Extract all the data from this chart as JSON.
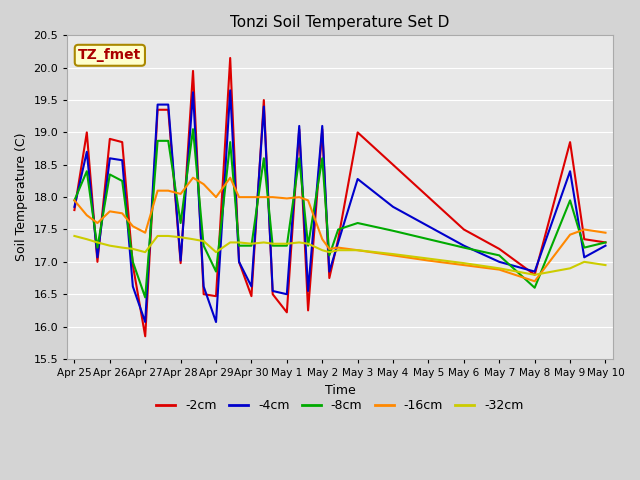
{
  "title": "Tonzi Soil Temperature Set D",
  "xlabel": "Time",
  "ylabel": "Soil Temperature (C)",
  "ylim": [
    15.5,
    20.5
  ],
  "xlim": [
    -0.2,
    15.2
  ],
  "fig_facecolor": "#d4d4d4",
  "ax_facecolor": "#e8e8e8",
  "annotation_text": "TZ_fmet",
  "annotation_color": "#aa0000",
  "annotation_bg": "#ffffcc",
  "annotation_border": "#aa8800",
  "colors": {
    "-2cm": "#dd0000",
    "-4cm": "#0000cc",
    "-8cm": "#00aa00",
    "-16cm": "#ff8800",
    "-32cm": "#cccc00"
  },
  "lw": 1.5,
  "xtick_labels": [
    "Apr 25",
    "Apr 26",
    "Apr 27",
    "Apr 28",
    "Apr 29",
    "Apr 30",
    "May 1",
    "May 2",
    "May 3",
    "May 4",
    "May 5",
    "May 6",
    "May 7",
    "May 8",
    "May 9",
    "May 10"
  ],
  "yticks": [
    15.5,
    16.0,
    16.5,
    17.0,
    17.5,
    18.0,
    18.5,
    19.0,
    19.5,
    20.0,
    20.5
  ],
  "pts_2cm": [
    [
      0,
      17.8
    ],
    [
      0.35,
      19.0
    ],
    [
      0.65,
      17.0
    ],
    [
      1.0,
      18.9
    ],
    [
      1.35,
      18.85
    ],
    [
      1.65,
      16.95
    ],
    [
      2.0,
      15.85
    ],
    [
      2.35,
      19.35
    ],
    [
      2.65,
      19.35
    ],
    [
      3.0,
      16.98
    ],
    [
      3.35,
      19.95
    ],
    [
      3.65,
      16.5
    ],
    [
      4.0,
      16.47
    ],
    [
      4.4,
      20.15
    ],
    [
      4.65,
      17.0
    ],
    [
      5.0,
      16.47
    ],
    [
      5.35,
      19.5
    ],
    [
      5.6,
      16.5
    ],
    [
      6.0,
      16.22
    ],
    [
      6.35,
      19.05
    ],
    [
      6.6,
      16.25
    ],
    [
      7.0,
      19.05
    ],
    [
      7.2,
      16.75
    ],
    [
      7.45,
      17.35
    ],
    [
      8.0,
      19.0
    ],
    [
      9.0,
      18.5
    ],
    [
      10.0,
      18.0
    ],
    [
      11.0,
      17.5
    ],
    [
      12.0,
      17.2
    ],
    [
      13.0,
      16.8
    ],
    [
      14.0,
      18.85
    ],
    [
      14.4,
      17.35
    ],
    [
      15.0,
      17.3
    ]
  ],
  "pts_4cm": [
    [
      0,
      17.85
    ],
    [
      0.35,
      18.7
    ],
    [
      0.65,
      17.07
    ],
    [
      1.0,
      18.6
    ],
    [
      1.35,
      18.57
    ],
    [
      1.65,
      16.62
    ],
    [
      2.0,
      16.07
    ],
    [
      2.35,
      19.43
    ],
    [
      2.65,
      19.43
    ],
    [
      3.0,
      17.02
    ],
    [
      3.35,
      19.62
    ],
    [
      3.65,
      16.62
    ],
    [
      4.0,
      16.07
    ],
    [
      4.4,
      19.65
    ],
    [
      4.65,
      17.0
    ],
    [
      5.0,
      16.62
    ],
    [
      5.35,
      19.4
    ],
    [
      5.6,
      16.55
    ],
    [
      6.0,
      16.5
    ],
    [
      6.35,
      19.1
    ],
    [
      6.6,
      16.55
    ],
    [
      7.0,
      19.1
    ],
    [
      7.2,
      16.85
    ],
    [
      7.45,
      17.3
    ],
    [
      8.0,
      18.28
    ],
    [
      9.0,
      17.85
    ],
    [
      10.0,
      17.55
    ],
    [
      11.0,
      17.25
    ],
    [
      12.0,
      17.0
    ],
    [
      13.0,
      16.85
    ],
    [
      14.0,
      18.4
    ],
    [
      14.4,
      17.07
    ],
    [
      15.0,
      17.25
    ]
  ],
  "pts_8cm": [
    [
      0,
      17.95
    ],
    [
      0.35,
      18.4
    ],
    [
      0.65,
      17.22
    ],
    [
      1.0,
      18.35
    ],
    [
      1.35,
      18.25
    ],
    [
      1.65,
      17.0
    ],
    [
      2.0,
      16.45
    ],
    [
      2.35,
      18.87
    ],
    [
      2.65,
      18.87
    ],
    [
      3.0,
      17.6
    ],
    [
      3.35,
      19.05
    ],
    [
      3.65,
      17.25
    ],
    [
      4.0,
      16.85
    ],
    [
      4.4,
      18.85
    ],
    [
      4.65,
      17.25
    ],
    [
      5.0,
      17.25
    ],
    [
      5.35,
      18.6
    ],
    [
      5.6,
      17.25
    ],
    [
      6.0,
      17.25
    ],
    [
      6.35,
      18.6
    ],
    [
      6.6,
      17.25
    ],
    [
      7.0,
      18.6
    ],
    [
      7.2,
      17.1
    ],
    [
      7.45,
      17.5
    ],
    [
      8.0,
      17.6
    ],
    [
      9.0,
      17.48
    ],
    [
      10.0,
      17.35
    ],
    [
      11.0,
      17.22
    ],
    [
      12.0,
      17.1
    ],
    [
      13.0,
      16.6
    ],
    [
      14.0,
      17.95
    ],
    [
      14.4,
      17.22
    ],
    [
      15.0,
      17.3
    ]
  ],
  "pts_16cm": [
    [
      0,
      17.95
    ],
    [
      0.35,
      17.72
    ],
    [
      0.65,
      17.6
    ],
    [
      1.0,
      17.78
    ],
    [
      1.35,
      17.75
    ],
    [
      1.65,
      17.55
    ],
    [
      2.0,
      17.45
    ],
    [
      2.35,
      18.1
    ],
    [
      2.65,
      18.1
    ],
    [
      3.0,
      18.05
    ],
    [
      3.35,
      18.3
    ],
    [
      3.65,
      18.2
    ],
    [
      4.0,
      18.0
    ],
    [
      4.4,
      18.3
    ],
    [
      4.65,
      18.0
    ],
    [
      5.0,
      18.0
    ],
    [
      5.35,
      18.0
    ],
    [
      5.6,
      18.0
    ],
    [
      6.0,
      17.98
    ],
    [
      6.35,
      18.0
    ],
    [
      6.6,
      17.95
    ],
    [
      7.0,
      17.35
    ],
    [
      7.2,
      17.2
    ],
    [
      7.45,
      17.22
    ],
    [
      8.0,
      17.18
    ],
    [
      9.0,
      17.1
    ],
    [
      10.0,
      17.02
    ],
    [
      11.0,
      16.95
    ],
    [
      12.0,
      16.88
    ],
    [
      13.0,
      16.7
    ],
    [
      14.0,
      17.42
    ],
    [
      14.4,
      17.5
    ],
    [
      15.0,
      17.45
    ]
  ],
  "pts_32cm": [
    [
      0,
      17.4
    ],
    [
      0.35,
      17.35
    ],
    [
      0.65,
      17.3
    ],
    [
      1.0,
      17.25
    ],
    [
      1.35,
      17.22
    ],
    [
      1.65,
      17.2
    ],
    [
      2.0,
      17.15
    ],
    [
      2.35,
      17.4
    ],
    [
      2.65,
      17.4
    ],
    [
      3.0,
      17.38
    ],
    [
      3.35,
      17.35
    ],
    [
      3.65,
      17.32
    ],
    [
      4.0,
      17.15
    ],
    [
      4.4,
      17.3
    ],
    [
      4.65,
      17.3
    ],
    [
      5.0,
      17.28
    ],
    [
      5.35,
      17.3
    ],
    [
      5.6,
      17.28
    ],
    [
      6.0,
      17.28
    ],
    [
      6.35,
      17.3
    ],
    [
      6.6,
      17.28
    ],
    [
      7.0,
      17.18
    ],
    [
      7.2,
      17.15
    ],
    [
      7.45,
      17.18
    ],
    [
      8.0,
      17.18
    ],
    [
      9.0,
      17.12
    ],
    [
      10.0,
      17.05
    ],
    [
      11.0,
      16.98
    ],
    [
      12.0,
      16.9
    ],
    [
      13.0,
      16.8
    ],
    [
      14.0,
      16.9
    ],
    [
      14.4,
      17.0
    ],
    [
      15.0,
      16.95
    ]
  ]
}
